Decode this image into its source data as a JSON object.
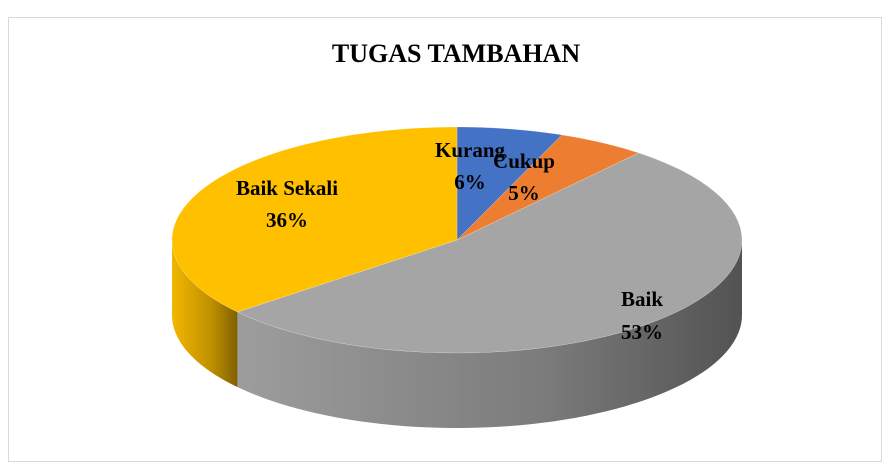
{
  "chart_data": {
    "type": "pie",
    "title": "TUGAS TAMBAHAN",
    "categories": [
      "Kurang",
      "Cukup",
      "Baik",
      "Baik Sekali"
    ],
    "values": [
      6,
      5,
      53,
      36
    ],
    "value_labels": [
      "6%",
      "5%",
      "53%",
      "36%"
    ],
    "colors": [
      "#4472c4",
      "#ed7d31",
      "#a5a5a5",
      "#ffc000"
    ]
  }
}
